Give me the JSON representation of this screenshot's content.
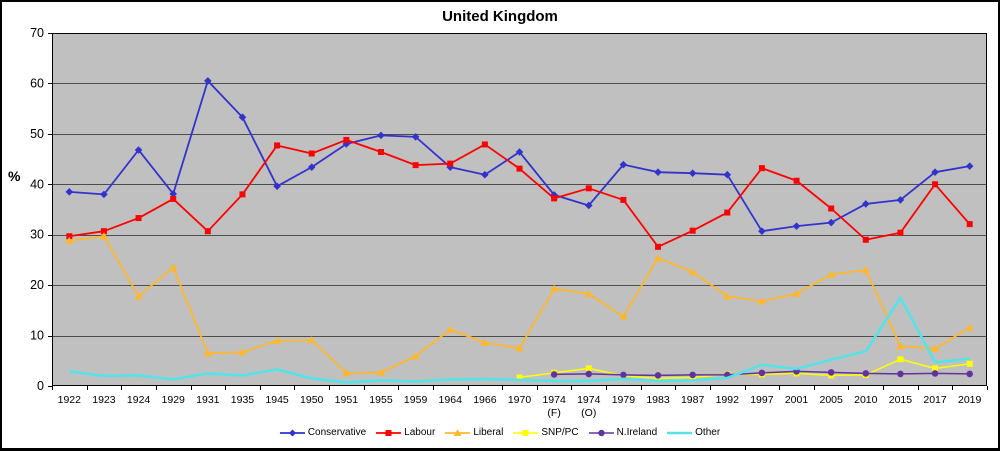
{
  "title": "United Kingdom",
  "y_axis_label": "%",
  "chart_data": {
    "type": "line",
    "title": "United Kingdom",
    "ylabel": "%",
    "ylim": [
      0,
      70
    ],
    "ytick_step": 10,
    "grid": true,
    "plot_bg": "#C0C0C0",
    "legend_position": "bottom",
    "categories": [
      "1922",
      "1923",
      "1924",
      "1929",
      "1931",
      "1935",
      "1945",
      "1950",
      "1951",
      "1955",
      "1959",
      "1964",
      "1966",
      "1970",
      "1974 (F)",
      "1974 (O)",
      "1979",
      "1983",
      "1987",
      "1992",
      "1997",
      "2001",
      "2005",
      "2010",
      "2015",
      "2017",
      "2019"
    ],
    "series": [
      {
        "name": "Conservative",
        "color": "#3333CC",
        "marker": "diamond",
        "line_width": 1.8,
        "values": [
          38.5,
          38.0,
          46.8,
          38.1,
          60.5,
          53.3,
          39.6,
          43.4,
          48.0,
          49.7,
          49.4,
          43.4,
          41.9,
          46.4,
          37.9,
          35.8,
          43.9,
          42.4,
          42.2,
          41.9,
          30.7,
          31.7,
          32.4,
          36.1,
          36.9,
          42.4,
          43.6
        ]
      },
      {
        "name": "Labour",
        "color": "#FF0000",
        "marker": "square",
        "line_width": 1.8,
        "values": [
          29.7,
          30.7,
          33.3,
          37.1,
          30.7,
          38.0,
          47.7,
          46.1,
          48.8,
          46.4,
          43.8,
          44.1,
          47.9,
          43.1,
          37.2,
          39.2,
          36.9,
          27.6,
          30.8,
          34.4,
          43.2,
          40.7,
          35.2,
          29.0,
          30.4,
          40.0,
          32.1
        ]
      },
      {
        "name": "Liberal",
        "color": "#FFB72B",
        "marker": "triangle",
        "line_width": 1.8,
        "values": [
          28.8,
          29.7,
          17.8,
          23.5,
          6.5,
          6.7,
          9.0,
          9.1,
          2.6,
          2.7,
          5.9,
          11.2,
          8.6,
          7.5,
          19.3,
          18.3,
          13.8,
          25.4,
          22.6,
          17.8,
          16.8,
          18.3,
          22.1,
          23.0,
          7.9,
          7.4,
          11.6
        ]
      },
      {
        "name": "SNP/PC",
        "color": "#FFFF00",
        "marker": "square",
        "line_width": 1.5,
        "values": [
          null,
          null,
          null,
          null,
          null,
          null,
          null,
          null,
          null,
          null,
          null,
          null,
          null,
          1.7,
          2.6,
          3.5,
          2.0,
          1.5,
          1.7,
          2.3,
          2.3,
          2.5,
          2.1,
          2.2,
          5.3,
          3.5,
          4.4
        ]
      },
      {
        "name": "N.Ireland",
        "color": "#6033A0",
        "marker": "circle",
        "line_width": 1.5,
        "values": [
          null,
          null,
          null,
          null,
          null,
          null,
          null,
          null,
          null,
          null,
          null,
          null,
          null,
          null,
          2.3,
          2.4,
          2.2,
          2.1,
          2.2,
          2.2,
          2.6,
          2.9,
          2.7,
          2.5,
          2.4,
          2.5,
          2.4
        ]
      },
      {
        "name": "Other",
        "color": "#55E3EA",
        "marker": "none",
        "line_width": 2.6,
        "values": [
          2.9,
          2.0,
          2.1,
          1.3,
          2.5,
          2.1,
          3.3,
          1.5,
          0.7,
          1.1,
          0.9,
          1.3,
          1.4,
          1.2,
          1.0,
          1.0,
          1.4,
          1.0,
          1.1,
          1.6,
          4.2,
          3.4,
          5.2,
          6.9,
          17.5,
          4.7,
          5.4
        ]
      }
    ]
  }
}
